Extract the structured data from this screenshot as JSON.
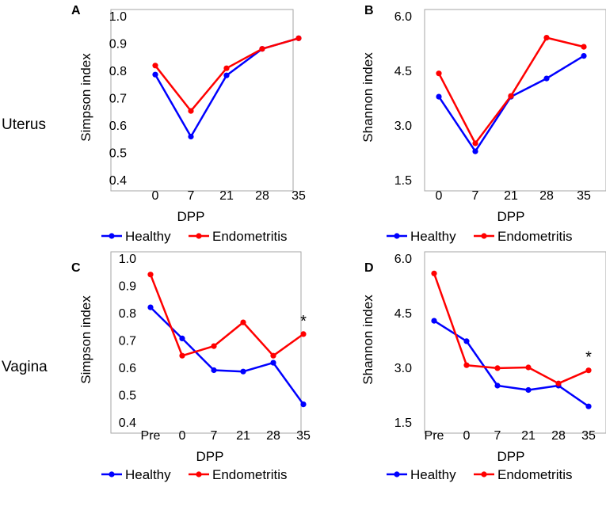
{
  "row_labels": [
    "Uterus",
    "Vagina"
  ],
  "colors": {
    "healthy": "#0000ff",
    "endometritis": "#ff0000",
    "frame": "#a6a6a6"
  },
  "chart_data": [
    {
      "panel": "A",
      "type": "line",
      "row": "Uterus",
      "xlabel": "DPP",
      "ylabel": "Simpson index",
      "categories": [
        "0",
        "7",
        "21",
        "28",
        "35"
      ],
      "ylim": [
        0.4,
        1.0
      ],
      "yticks": [
        "0.4",
        "0.5",
        "0.6",
        "0.7",
        "0.8",
        "0.9",
        "1.0"
      ],
      "series": [
        {
          "name": "Healthy",
          "values": [
            0.785,
            0.558,
            0.782,
            0.879,
            0.918
          ]
        },
        {
          "name": "Endometritis",
          "values": [
            0.818,
            0.652,
            0.808,
            0.879,
            0.918
          ]
        }
      ],
      "annotations": []
    },
    {
      "panel": "B",
      "type": "line",
      "row": "Uterus",
      "xlabel": "DPP",
      "ylabel": "Shannon index",
      "categories": [
        "0",
        "7",
        "21",
        "28",
        "35"
      ],
      "ylim": [
        1.5,
        6.0
      ],
      "yticks": [
        "1.5",
        "3.0",
        "4.5",
        "6.0"
      ],
      "series": [
        {
          "name": "Healthy",
          "values": [
            3.78,
            2.28,
            3.78,
            4.28,
            4.9
          ]
        },
        {
          "name": "Endometritis",
          "values": [
            4.42,
            2.5,
            3.8,
            5.4,
            5.15
          ]
        }
      ],
      "annotations": []
    },
    {
      "panel": "C",
      "type": "line",
      "row": "Vagina",
      "xlabel": "DPP",
      "ylabel": "Simpson index",
      "categories": [
        "Pre",
        "0",
        "7",
        "21",
        "28",
        "35"
      ],
      "ylim": [
        0.4,
        1.0
      ],
      "yticks": [
        "0.4",
        "0.5",
        "0.6",
        "0.7",
        "0.8",
        "0.9",
        "1.0"
      ],
      "series": [
        {
          "name": "Healthy",
          "values": [
            0.82,
            0.706,
            0.59,
            0.585,
            0.617,
            0.465
          ]
        },
        {
          "name": "Endometritis",
          "values": [
            0.94,
            0.643,
            0.678,
            0.765,
            0.643,
            0.722
          ]
        }
      ],
      "annotations": [
        {
          "text": "*",
          "category": "35"
        }
      ]
    },
    {
      "panel": "D",
      "type": "line",
      "row": "Vagina",
      "xlabel": "DPP",
      "ylabel": "Shannon index",
      "categories": [
        "Pre",
        "0",
        "7",
        "21",
        "28",
        "35"
      ],
      "ylim": [
        1.5,
        6.0
      ],
      "yticks": [
        "1.5",
        "3.0",
        "4.5",
        "6.0"
      ],
      "series": [
        {
          "name": "Healthy",
          "values": [
            4.28,
            3.72,
            2.5,
            2.38,
            2.5,
            1.93
          ]
        },
        {
          "name": "Endometritis",
          "values": [
            5.58,
            3.06,
            2.98,
            3.0,
            2.56,
            2.92
          ]
        }
      ],
      "annotations": [
        {
          "text": "*",
          "category": "35"
        }
      ]
    }
  ]
}
